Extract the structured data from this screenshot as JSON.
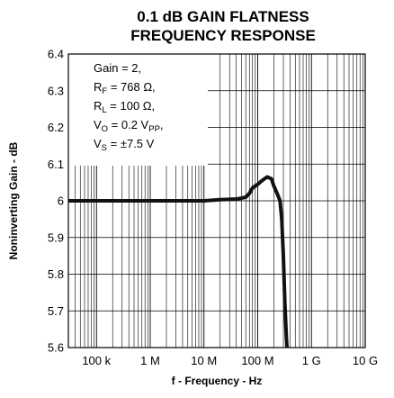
{
  "chart_data": {
    "type": "line",
    "title": [
      "0.1 dB GAIN FLATNESS",
      "FREQUENCY RESPONSE"
    ],
    "xlabel": "f - Frequency - Hz",
    "ylabel": "Noninverting Gain - dB",
    "xscale": "log",
    "xlim": [
      30000,
      10000000000
    ],
    "ylim": [
      5.6,
      6.4
    ],
    "grid": true,
    "xticks": [
      {
        "value": 100000,
        "label": "100 k"
      },
      {
        "value": 1000000,
        "label": "1 M"
      },
      {
        "value": 10000000,
        "label": "10 M"
      },
      {
        "value": 100000000,
        "label": "100 M"
      },
      {
        "value": 1000000000,
        "label": "1 G"
      },
      {
        "value": 10000000000,
        "label": "10 G"
      }
    ],
    "yticks": [
      {
        "value": 5.6,
        "label": "5.6"
      },
      {
        "value": 5.7,
        "label": "5.7"
      },
      {
        "value": 5.8,
        "label": "5.8"
      },
      {
        "value": 5.9,
        "label": "5.9"
      },
      {
        "value": 6.0,
        "label": "6"
      },
      {
        "value": 6.1,
        "label": "6.1"
      },
      {
        "value": 6.2,
        "label": "6.2"
      },
      {
        "value": 6.3,
        "label": "6.3"
      },
      {
        "value": 6.4,
        "label": "6.4"
      }
    ],
    "legend_position": "top-left",
    "conditions": [
      {
        "parts": [
          {
            "t": "Gain = 2,"
          }
        ]
      },
      {
        "parts": [
          {
            "t": "R"
          },
          {
            "t": "F",
            "sub": true
          },
          {
            "t": " = 768 Ω,"
          }
        ]
      },
      {
        "parts": [
          {
            "t": "R"
          },
          {
            "t": "L",
            "sub": true
          },
          {
            "t": " = 100 Ω,"
          }
        ]
      },
      {
        "parts": [
          {
            "t": "V"
          },
          {
            "t": "O",
            "sub": true
          },
          {
            "t": " = 0.2 V"
          },
          {
            "t": "PP",
            "sub": true
          },
          {
            "t": ","
          }
        ]
      },
      {
        "parts": [
          {
            "t": "V"
          },
          {
            "t": "S",
            "sub": true
          },
          {
            "t": " = ±7.5 V"
          }
        ]
      }
    ],
    "series": [
      {
        "x": [
          30000,
          100000,
          1000000,
          10000000,
          20000000,
          40000000,
          50000000,
          60000000,
          70000000,
          80000000,
          100000000,
          120000000,
          150000000,
          180000000,
          200000000,
          230000000,
          260000000,
          280000000,
          300000000,
          320000000,
          340000000,
          350000000
        ],
        "y": [
          6.0,
          6.0,
          6.0,
          6.0,
          6.003,
          6.005,
          6.007,
          6.01,
          6.02,
          6.035,
          6.045,
          6.055,
          6.065,
          6.06,
          6.04,
          6.02,
          6.0,
          5.95,
          5.85,
          5.72,
          5.63,
          5.6
        ]
      }
    ]
  }
}
